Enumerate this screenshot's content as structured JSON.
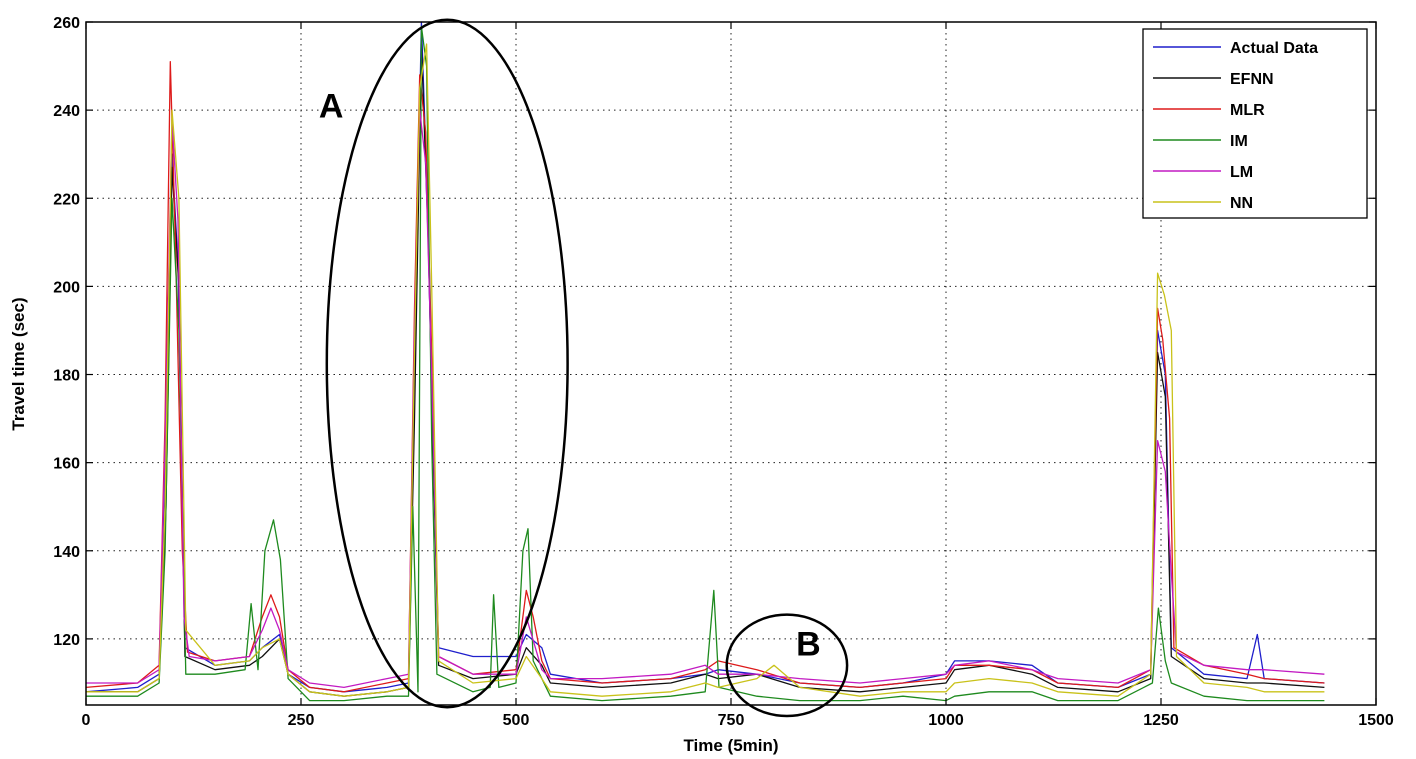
{
  "chart_data": {
    "type": "line",
    "xlabel": "Time (5min)",
    "ylabel": "Travel time (sec)",
    "xlim": [
      0,
      1500
    ],
    "ylim": [
      105,
      260
    ],
    "x_ticks": [
      "0",
      "250",
      "500",
      "750",
      "1000",
      "1250",
      "1500"
    ],
    "y_ticks": [
      "120",
      "140",
      "160",
      "180",
      "200",
      "220",
      "240",
      "260"
    ],
    "grid": "dotted",
    "legend_position": "top-right",
    "series": [
      {
        "name": "Actual Data",
        "color": "#1f1fcc",
        "points": [
          [
            0,
            108
          ],
          [
            60,
            109
          ],
          [
            85,
            112
          ],
          [
            92,
            160
          ],
          [
            100,
            230
          ],
          [
            107,
            205
          ],
          [
            115,
            118
          ],
          [
            150,
            114
          ],
          [
            190,
            115
          ],
          [
            205,
            118
          ],
          [
            225,
            121
          ],
          [
            235,
            112
          ],
          [
            260,
            109
          ],
          [
            300,
            108
          ],
          [
            350,
            109
          ],
          [
            375,
            110
          ],
          [
            382,
            180
          ],
          [
            390,
            260
          ],
          [
            397,
            220
          ],
          [
            402,
            175
          ],
          [
            410,
            118
          ],
          [
            450,
            116
          ],
          [
            500,
            116
          ],
          [
            512,
            121
          ],
          [
            530,
            118
          ],
          [
            540,
            112
          ],
          [
            600,
            110
          ],
          [
            680,
            111
          ],
          [
            720,
            112
          ],
          [
            735,
            113
          ],
          [
            780,
            112
          ],
          [
            830,
            110
          ],
          [
            900,
            109
          ],
          [
            950,
            110
          ],
          [
            1000,
            112
          ],
          [
            1010,
            115
          ],
          [
            1050,
            115
          ],
          [
            1100,
            114
          ],
          [
            1130,
            110
          ],
          [
            1200,
            109
          ],
          [
            1238,
            112
          ],
          [
            1246,
            190
          ],
          [
            1255,
            180
          ],
          [
            1262,
            118
          ],
          [
            1300,
            112
          ],
          [
            1350,
            111
          ],
          [
            1362,
            121
          ],
          [
            1370,
            111
          ],
          [
            1440,
            110
          ]
        ]
      },
      {
        "name": "EFNN",
        "color": "#111111",
        "points": [
          [
            0,
            108
          ],
          [
            60,
            108
          ],
          [
            85,
            111
          ],
          [
            93,
            150
          ],
          [
            100,
            227
          ],
          [
            108,
            200
          ],
          [
            115,
            116
          ],
          [
            150,
            113
          ],
          [
            190,
            114
          ],
          [
            205,
            116
          ],
          [
            225,
            120
          ],
          [
            235,
            112
          ],
          [
            260,
            108
          ],
          [
            300,
            107
          ],
          [
            350,
            108
          ],
          [
            375,
            109
          ],
          [
            382,
            170
          ],
          [
            390,
            255
          ],
          [
            398,
            210
          ],
          [
            404,
            160
          ],
          [
            410,
            114
          ],
          [
            450,
            111
          ],
          [
            500,
            112
          ],
          [
            512,
            118
          ],
          [
            530,
            114
          ],
          [
            540,
            110
          ],
          [
            600,
            109
          ],
          [
            680,
            110
          ],
          [
            720,
            112
          ],
          [
            735,
            111
          ],
          [
            780,
            112
          ],
          [
            830,
            109
          ],
          [
            900,
            108
          ],
          [
            950,
            109
          ],
          [
            1000,
            110
          ],
          [
            1010,
            113
          ],
          [
            1050,
            114
          ],
          [
            1100,
            112
          ],
          [
            1130,
            109
          ],
          [
            1200,
            108
          ],
          [
            1238,
            111
          ],
          [
            1246,
            185
          ],
          [
            1255,
            175
          ],
          [
            1262,
            116
          ],
          [
            1300,
            111
          ],
          [
            1350,
            110
          ],
          [
            1370,
            110
          ],
          [
            1440,
            109
          ]
        ]
      },
      {
        "name": "MLR",
        "color": "#dd1a1a",
        "points": [
          [
            0,
            109
          ],
          [
            60,
            110
          ],
          [
            85,
            114
          ],
          [
            92,
            170
          ],
          [
            98,
            251
          ],
          [
            104,
            210
          ],
          [
            112,
            140
          ],
          [
            118,
            117
          ],
          [
            150,
            115
          ],
          [
            190,
            116
          ],
          [
            205,
            125
          ],
          [
            215,
            130
          ],
          [
            225,
            125
          ],
          [
            235,
            113
          ],
          [
            260,
            109
          ],
          [
            300,
            108
          ],
          [
            350,
            110
          ],
          [
            375,
            111
          ],
          [
            382,
            195
          ],
          [
            388,
            248
          ],
          [
            395,
            235
          ],
          [
            402,
            185
          ],
          [
            410,
            116
          ],
          [
            450,
            112
          ],
          [
            500,
            113
          ],
          [
            512,
            131
          ],
          [
            520,
            125
          ],
          [
            530,
            115
          ],
          [
            540,
            111
          ],
          [
            600,
            110
          ],
          [
            680,
            111
          ],
          [
            720,
            113
          ],
          [
            735,
            115
          ],
          [
            780,
            113
          ],
          [
            830,
            110
          ],
          [
            900,
            109
          ],
          [
            950,
            110
          ],
          [
            1000,
            111
          ],
          [
            1010,
            114
          ],
          [
            1050,
            114
          ],
          [
            1100,
            113
          ],
          [
            1130,
            110
          ],
          [
            1200,
            109
          ],
          [
            1238,
            113
          ],
          [
            1246,
            195
          ],
          [
            1252,
            188
          ],
          [
            1260,
            170
          ],
          [
            1265,
            118
          ],
          [
            1300,
            114
          ],
          [
            1350,
            112
          ],
          [
            1370,
            111
          ],
          [
            1440,
            110
          ]
        ]
      },
      {
        "name": "IM",
        "color": "#1e8a1e",
        "points": [
          [
            0,
            107
          ],
          [
            60,
            107
          ],
          [
            85,
            110
          ],
          [
            92,
            140
          ],
          [
            100,
            220
          ],
          [
            108,
            190
          ],
          [
            116,
            112
          ],
          [
            150,
            112
          ],
          [
            185,
            113
          ],
          [
            192,
            128
          ],
          [
            200,
            113
          ],
          [
            208,
            140
          ],
          [
            218,
            147
          ],
          [
            226,
            138
          ],
          [
            235,
            111
          ],
          [
            260,
            106
          ],
          [
            300,
            106
          ],
          [
            350,
            107
          ],
          [
            375,
            107
          ],
          [
            380,
            150
          ],
          [
            386,
            108
          ],
          [
            390,
            259
          ],
          [
            396,
            250
          ],
          [
            402,
            165
          ],
          [
            408,
            112
          ],
          [
            450,
            108
          ],
          [
            470,
            109
          ],
          [
            474,
            130
          ],
          [
            480,
            109
          ],
          [
            500,
            110
          ],
          [
            508,
            140
          ],
          [
            514,
            145
          ],
          [
            520,
            115
          ],
          [
            540,
            107
          ],
          [
            600,
            106
          ],
          [
            680,
            107
          ],
          [
            720,
            108
          ],
          [
            730,
            131
          ],
          [
            736,
            109
          ],
          [
            780,
            107
          ],
          [
            830,
            106
          ],
          [
            900,
            106
          ],
          [
            950,
            107
          ],
          [
            1000,
            106
          ],
          [
            1010,
            107
          ],
          [
            1050,
            108
          ],
          [
            1100,
            108
          ],
          [
            1130,
            106
          ],
          [
            1200,
            106
          ],
          [
            1240,
            110
          ],
          [
            1247,
            127
          ],
          [
            1255,
            115
          ],
          [
            1262,
            110
          ],
          [
            1300,
            107
          ],
          [
            1350,
            106
          ],
          [
            1370,
            106
          ],
          [
            1440,
            106
          ]
        ]
      },
      {
        "name": "LM",
        "color": "#c21ac2",
        "points": [
          [
            0,
            110
          ],
          [
            60,
            110
          ],
          [
            85,
            113
          ],
          [
            92,
            165
          ],
          [
            100,
            238
          ],
          [
            107,
            215
          ],
          [
            114,
            125
          ],
          [
            120,
            116
          ],
          [
            150,
            115
          ],
          [
            190,
            116
          ],
          [
            205,
            122
          ],
          [
            215,
            127
          ],
          [
            225,
            122
          ],
          [
            235,
            113
          ],
          [
            260,
            110
          ],
          [
            300,
            109
          ],
          [
            350,
            111
          ],
          [
            375,
            112
          ],
          [
            382,
            190
          ],
          [
            388,
            240
          ],
          [
            395,
            228
          ],
          [
            402,
            180
          ],
          [
            410,
            116
          ],
          [
            450,
            112
          ],
          [
            500,
            112
          ],
          [
            512,
            125
          ],
          [
            530,
            113
          ],
          [
            540,
            111
          ],
          [
            600,
            111
          ],
          [
            680,
            112
          ],
          [
            720,
            114
          ],
          [
            735,
            112
          ],
          [
            780,
            112
          ],
          [
            830,
            111
          ],
          [
            900,
            110
          ],
          [
            950,
            111
          ],
          [
            1000,
            112
          ],
          [
            1010,
            114
          ],
          [
            1050,
            115
          ],
          [
            1100,
            113
          ],
          [
            1130,
            111
          ],
          [
            1200,
            110
          ],
          [
            1238,
            113
          ],
          [
            1246,
            165
          ],
          [
            1255,
            158
          ],
          [
            1262,
            135
          ],
          [
            1268,
            117
          ],
          [
            1300,
            114
          ],
          [
            1350,
            113
          ],
          [
            1370,
            113
          ],
          [
            1440,
            112
          ]
        ]
      },
      {
        "name": "NN",
        "color": "#c9c21a",
        "points": [
          [
            0,
            108
          ],
          [
            60,
            108
          ],
          [
            85,
            111
          ],
          [
            92,
            150
          ],
          [
            100,
            240
          ],
          [
            108,
            220
          ],
          [
            116,
            122
          ],
          [
            150,
            114
          ],
          [
            190,
            115
          ],
          [
            205,
            118
          ],
          [
            225,
            120
          ],
          [
            235,
            112
          ],
          [
            260,
            108
          ],
          [
            300,
            107
          ],
          [
            350,
            108
          ],
          [
            375,
            109
          ],
          [
            382,
            185
          ],
          [
            388,
            245
          ],
          [
            396,
            255
          ],
          [
            402,
            200
          ],
          [
            410,
            115
          ],
          [
            450,
            110
          ],
          [
            500,
            111
          ],
          [
            512,
            116
          ],
          [
            530,
            111
          ],
          [
            540,
            108
          ],
          [
            600,
            107
          ],
          [
            680,
            108
          ],
          [
            720,
            110
          ],
          [
            735,
            109
          ],
          [
            780,
            111
          ],
          [
            800,
            114
          ],
          [
            830,
            109
          ],
          [
            900,
            107
          ],
          [
            950,
            108
          ],
          [
            1000,
            108
          ],
          [
            1010,
            110
          ],
          [
            1050,
            111
          ],
          [
            1100,
            110
          ],
          [
            1130,
            108
          ],
          [
            1200,
            107
          ],
          [
            1238,
            112
          ],
          [
            1246,
            203
          ],
          [
            1254,
            198
          ],
          [
            1262,
            190
          ],
          [
            1268,
            116
          ],
          [
            1300,
            110
          ],
          [
            1350,
            109
          ],
          [
            1370,
            108
          ],
          [
            1440,
            108
          ]
        ]
      }
    ],
    "annotations": [
      {
        "text": "A",
        "x": 285,
        "y": 241
      },
      {
        "text": "B",
        "x": 840,
        "y": 119
      }
    ],
    "ellipses": [
      {
        "cx": 420,
        "cy": 182.5,
        "rx": 140,
        "ry": 78
      },
      {
        "cx": 815,
        "cy": 114,
        "rx": 70,
        "ry": 11.5
      }
    ]
  }
}
